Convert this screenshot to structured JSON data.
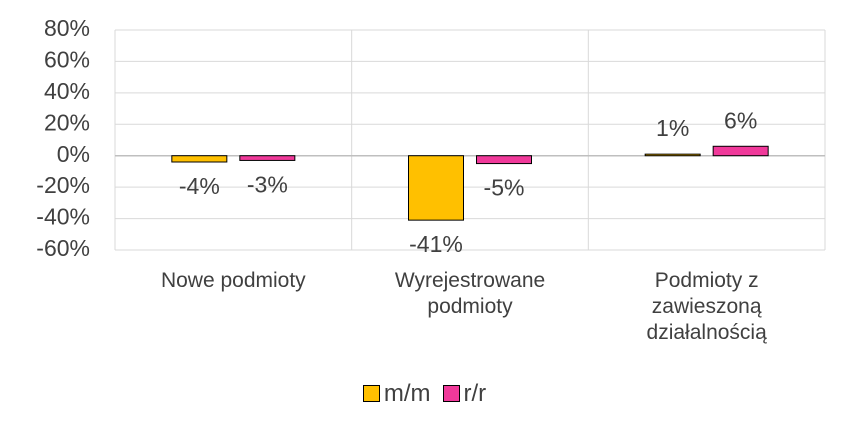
{
  "chart_data": {
    "type": "bar",
    "categories": [
      "Nowe podmioty",
      "Wyrejestrowane podmioty",
      "Podmioty z zawieszoną działalnością"
    ],
    "series": [
      {
        "name": "m/m",
        "color": "#FFC000",
        "values": [
          -4,
          -41,
          1
        ],
        "value_labels": [
          "-4%",
          "-41%",
          "1%"
        ]
      },
      {
        "name": "r/r",
        "color": "#F0399A",
        "values": [
          -3,
          -5,
          6
        ],
        "value_labels": [
          "-3%",
          "-5%",
          "6%"
        ]
      }
    ],
    "ylim": [
      -60,
      80
    ],
    "yticks": [
      {
        "value": -60,
        "label": "-60%"
      },
      {
        "value": -40,
        "label": "-40%"
      },
      {
        "value": -20,
        "label": "-20%"
      },
      {
        "value": 0,
        "label": "0%"
      },
      {
        "value": 20,
        "label": "20%"
      },
      {
        "value": 40,
        "label": "40%"
      },
      {
        "value": 60,
        "label": "60%"
      },
      {
        "value": 80,
        "label": "80%"
      }
    ],
    "grid": true
  }
}
